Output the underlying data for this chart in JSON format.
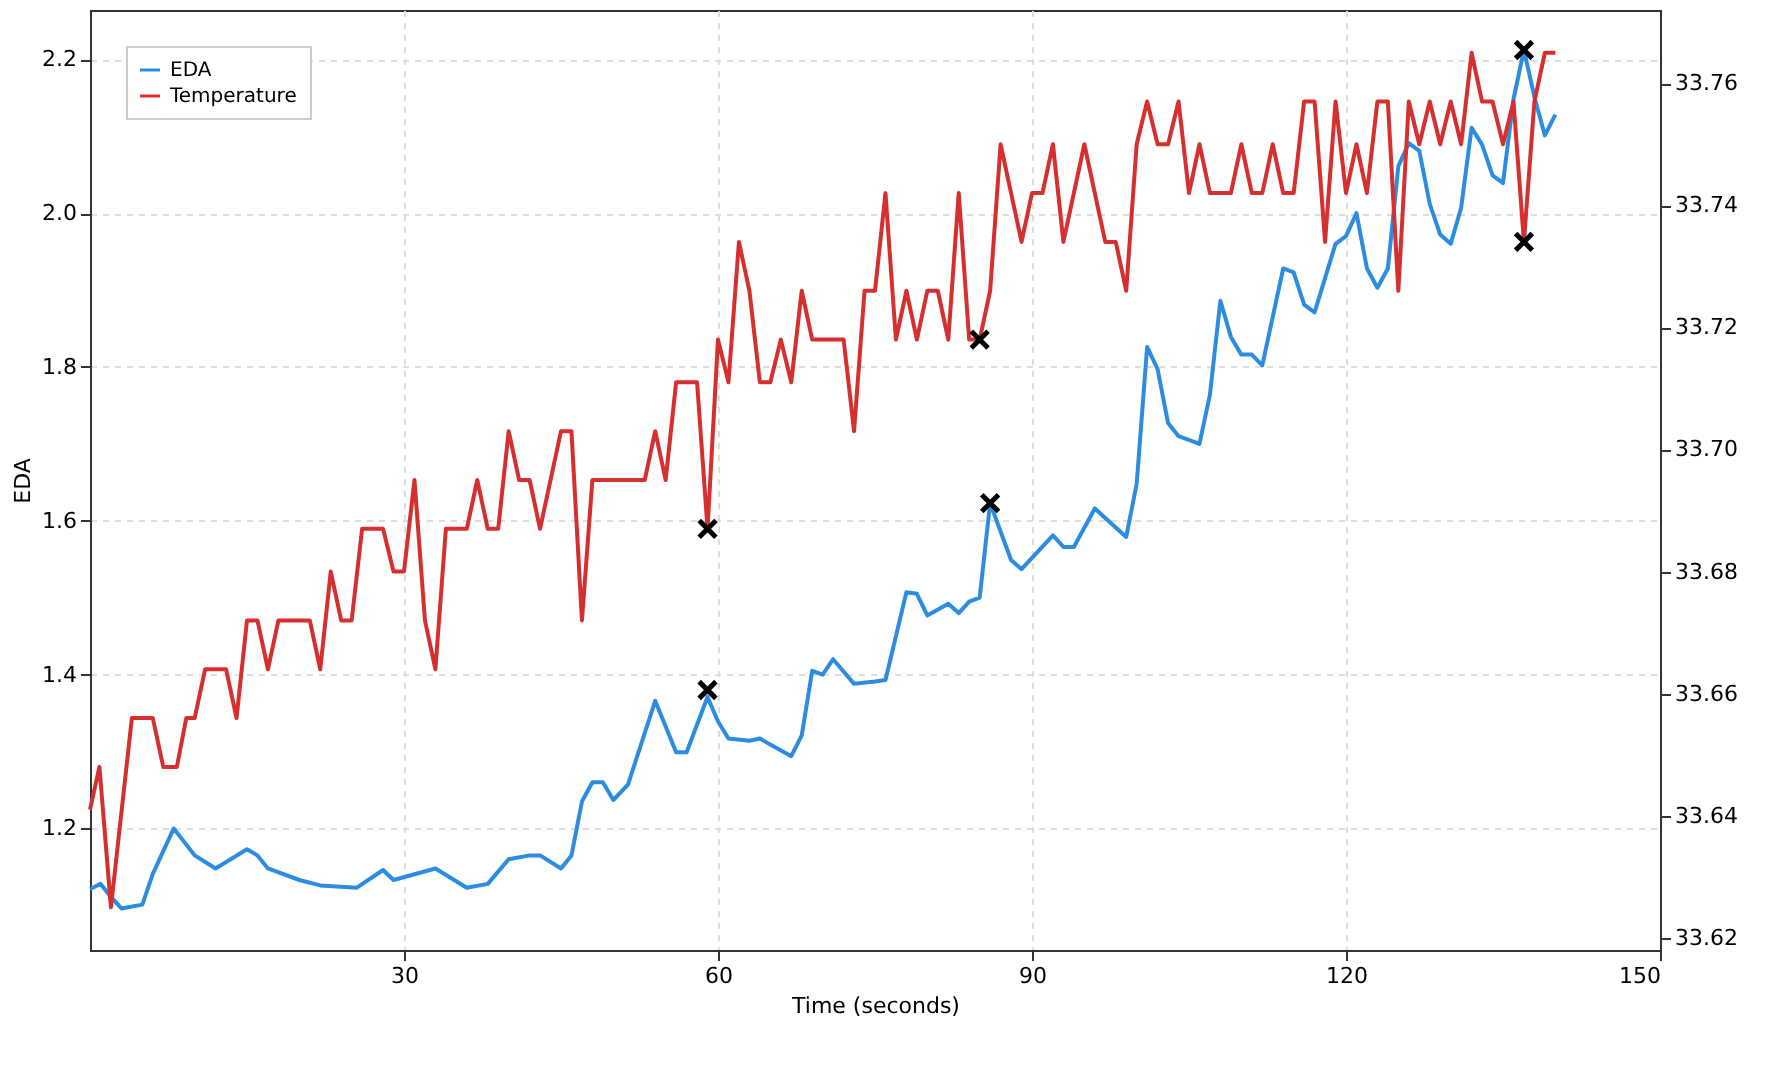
{
  "chart_data": {
    "type": "line",
    "xlabel": "Time (seconds)",
    "ylabel": "EDA",
    "xlim": [
      0,
      150
    ],
    "xticks": [
      30,
      60,
      90,
      120,
      150
    ],
    "ylim": [
      1.042,
      2.264
    ],
    "yticks": [
      1.2,
      1.4,
      1.6,
      1.8,
      {
        "value": 2,
        "label": "2.0"
      },
      2.2
    ],
    "y2lim": [
      33.618,
      33.772
    ],
    "y2ticks": [
      33.62,
      33.64,
      33.66,
      33.68,
      {
        "value": 33.7,
        "label": "33.70"
      },
      33.72,
      33.74,
      33.76
    ],
    "grid": true,
    "legend": "top left",
    "line_style": "solid",
    "series": [
      {
        "name": "EDA",
        "color": "#2b8ce0",
        "marker": "none",
        "x": [
          0,
          1,
          2,
          3,
          5,
          6,
          8,
          10,
          12,
          15,
          16,
          17,
          20,
          22,
          25.5,
          28,
          29,
          33,
          36,
          38,
          40,
          42,
          43,
          45,
          46,
          47,
          48,
          49,
          50,
          51.4,
          54,
          56,
          57,
          59,
          60,
          61,
          63,
          64,
          65,
          67,
          68,
          69,
          70,
          71,
          73,
          75,
          76,
          78,
          79,
          80,
          82,
          83,
          84,
          85,
          86,
          88,
          89,
          92,
          93,
          94,
          96,
          99,
          100,
          101,
          102,
          103,
          104,
          106,
          107,
          108,
          109,
          110,
          111,
          112,
          114,
          115,
          116,
          117,
          119,
          120,
          121,
          122,
          123,
          124,
          125,
          126,
          127,
          128,
          129,
          130,
          131,
          132,
          133,
          134,
          135,
          136,
          137,
          138,
          139,
          140
        ],
        "values": [
          1.121,
          1.128,
          1.111,
          1.096,
          1.101,
          1.141,
          1.2,
          1.165,
          1.148,
          1.173,
          1.165,
          1.148,
          1.133,
          1.126,
          1.123,
          1.146,
          1.133,
          1.148,
          1.123,
          1.128,
          1.16,
          1.165,
          1.165,
          1.148,
          1.165,
          1.235,
          1.26,
          1.26,
          1.237,
          1.257,
          1.366,
          1.299,
          1.299,
          1.371,
          1.339,
          1.317,
          1.314,
          1.317,
          1.309,
          1.294,
          1.321,
          1.405,
          1.4,
          1.42,
          1.388,
          1.391,
          1.393,
          1.507,
          1.505,
          1.477,
          1.492,
          1.48,
          1.495,
          1.5,
          1.623,
          1.549,
          1.537,
          1.581,
          1.566,
          1.566,
          1.616,
          1.579,
          1.648,
          1.826,
          1.797,
          1.727,
          1.71,
          1.7,
          1.764,
          1.886,
          1.839,
          1.816,
          1.816,
          1.802,
          1.928,
          1.923,
          1.881,
          1.871,
          1.96,
          1.97,
          2.0,
          1.928,
          1.903,
          1.928,
          2.061,
          2.091,
          2.081,
          2.012,
          1.972,
          1.96,
          2.007,
          2.111,
          2.089,
          2.049,
          2.039,
          2.148,
          2.212,
          2.151,
          2.101,
          2.128
        ]
      },
      {
        "name": "Temperature",
        "color": "#d62f2f",
        "marker": "none",
        "axis": "y2",
        "x": [
          0,
          0.9,
          2,
          4,
          6,
          7,
          8.3,
          9.2,
          10,
          11,
          13,
          14,
          15,
          16,
          17,
          18,
          21,
          22,
          23,
          24,
          25,
          26,
          28,
          29,
          30,
          31,
          32,
          33,
          34,
          36,
          37,
          38,
          39,
          40,
          41,
          42,
          43,
          45,
          46,
          47,
          48,
          53,
          54,
          55,
          56,
          58,
          59,
          60,
          61,
          62,
          63,
          64,
          65,
          66,
          67,
          68,
          69,
          72,
          73,
          74,
          75,
          76,
          77,
          78,
          79,
          80,
          81,
          82,
          83,
          84,
          85,
          86,
          87,
          89,
          90,
          91,
          92,
          93,
          95,
          97,
          98,
          99,
          100,
          101,
          102,
          103,
          104,
          105,
          106,
          107,
          109,
          110,
          111,
          112,
          113,
          114,
          115,
          116,
          117,
          118,
          119,
          120,
          121,
          122,
          123,
          124,
          125,
          126,
          127,
          128,
          129,
          130,
          131,
          132,
          133,
          134,
          135,
          136,
          137,
          138,
          139,
          140
        ],
        "values": [
          33.641,
          33.648,
          33.625,
          33.656,
          33.656,
          33.648,
          33.648,
          33.656,
          33.656,
          33.664,
          33.664,
          33.656,
          33.672,
          33.672,
          33.664,
          33.672,
          33.672,
          33.664,
          33.68,
          33.672,
          33.672,
          33.687,
          33.687,
          33.68,
          33.68,
          33.695,
          33.672,
          33.664,
          33.687,
          33.687,
          33.695,
          33.687,
          33.687,
          33.703,
          33.695,
          33.695,
          33.687,
          33.703,
          33.703,
          33.672,
          33.695,
          33.695,
          33.703,
          33.695,
          33.711,
          33.711,
          33.687,
          33.718,
          33.711,
          33.734,
          33.726,
          33.711,
          33.711,
          33.718,
          33.711,
          33.726,
          33.718,
          33.718,
          33.703,
          33.726,
          33.726,
          33.742,
          33.718,
          33.726,
          33.718,
          33.726,
          33.726,
          33.718,
          33.742,
          33.718,
          33.718,
          33.726,
          33.75,
          33.734,
          33.742,
          33.742,
          33.75,
          33.734,
          33.75,
          33.734,
          33.734,
          33.726,
          33.75,
          33.757,
          33.75,
          33.75,
          33.757,
          33.742,
          33.75,
          33.742,
          33.742,
          33.75,
          33.742,
          33.742,
          33.75,
          33.742,
          33.742,
          33.757,
          33.757,
          33.734,
          33.757,
          33.742,
          33.75,
          33.742,
          33.757,
          33.757,
          33.726,
          33.757,
          33.75,
          33.757,
          33.75,
          33.757,
          33.75,
          33.765,
          33.757,
          33.757,
          33.75,
          33.757,
          33.734,
          33.757,
          33.765,
          33.765
        ]
      },
      {
        "color": "#000000",
        "type": "scatter",
        "marker": "cross",
        "x": [
          59,
          86,
          137
        ],
        "values": [
          1.38,
          1.623,
          2.212
        ]
      },
      {
        "color": "#000000",
        "type": "scatter",
        "marker": "cross",
        "axis": "y2",
        "x": [
          59,
          85,
          137
        ],
        "values": [
          33.687,
          33.718,
          33.734
        ]
      }
    ]
  }
}
